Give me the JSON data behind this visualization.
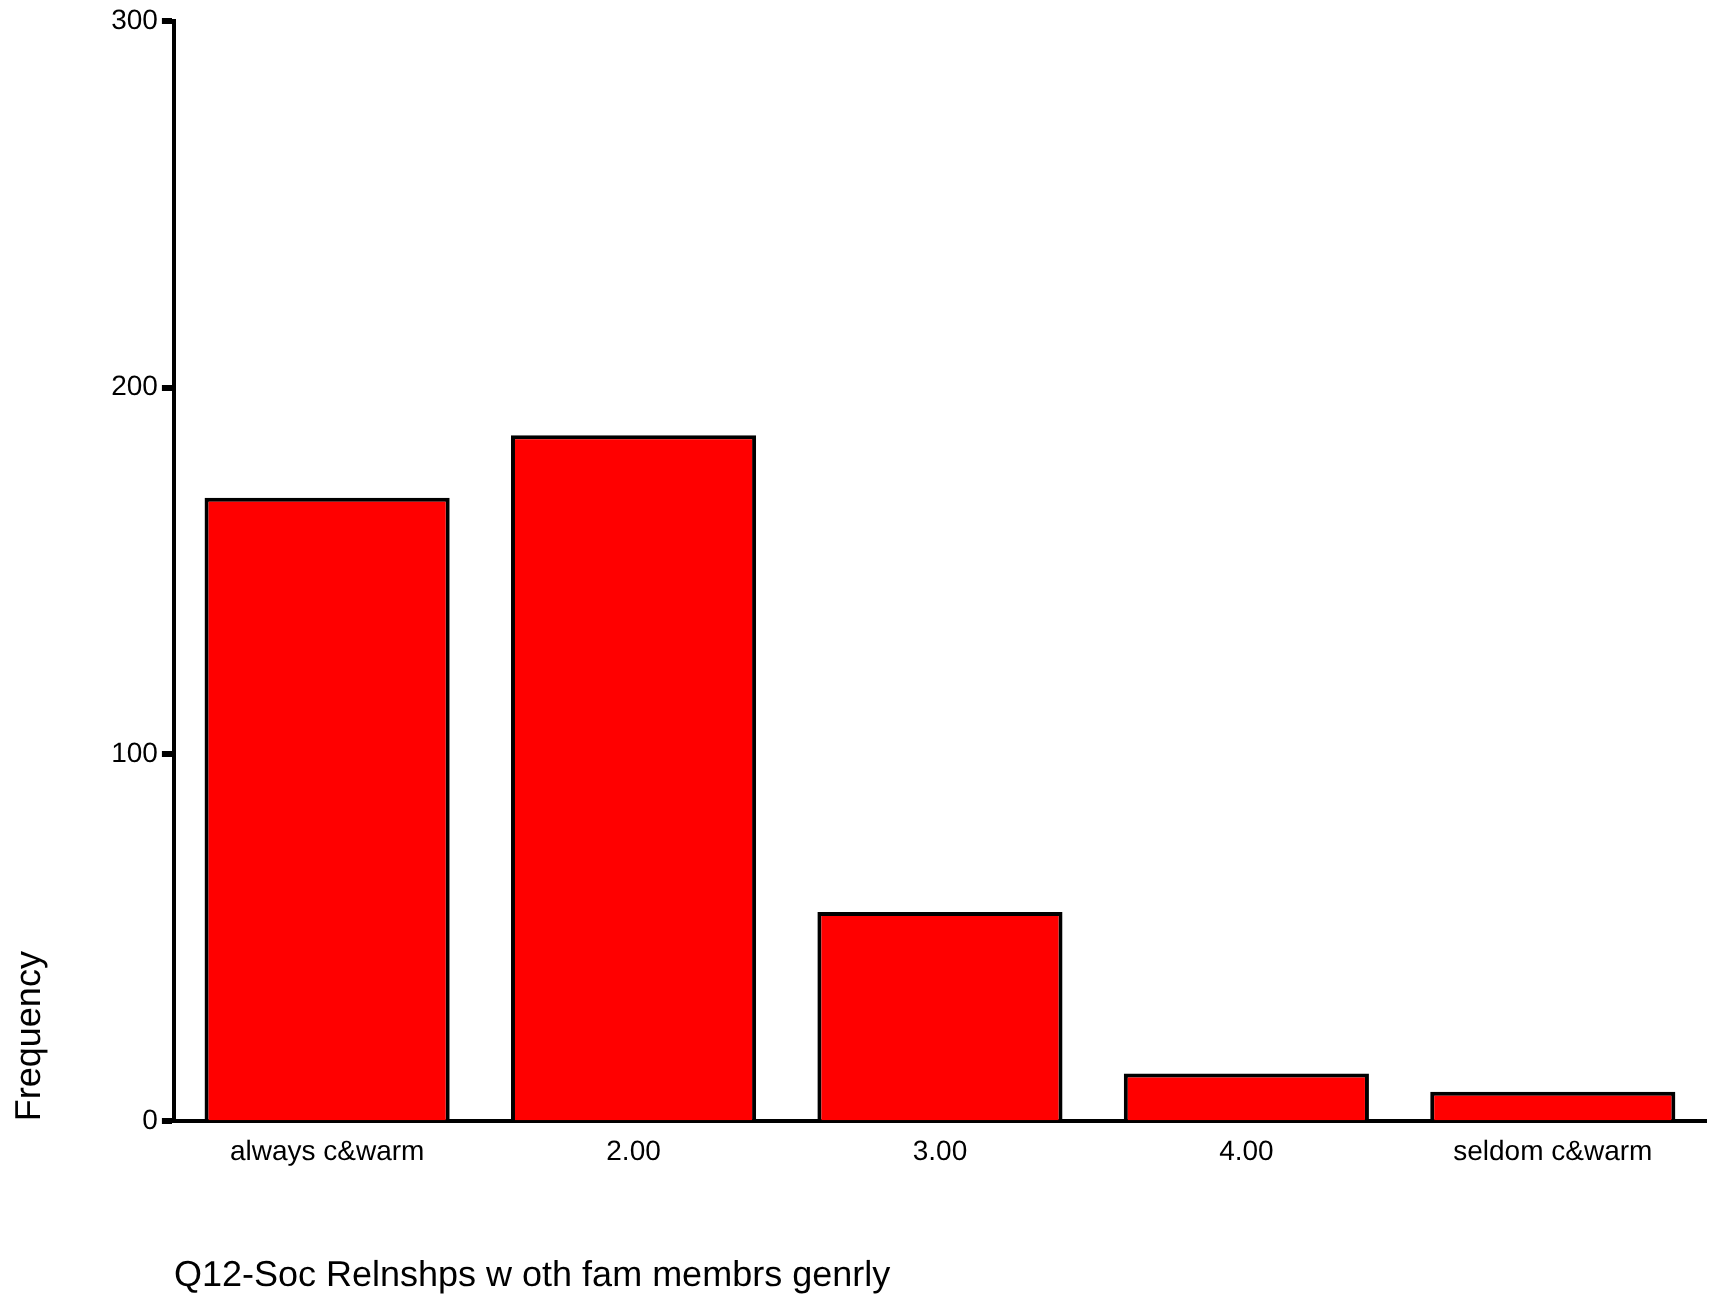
{
  "chart_data": {
    "type": "bar",
    "xlabel": "Q12-Soc Relnshps w oth fam membrs genrly",
    "ylabel": "Frequency",
    "categories": [
      "always c&warm",
      "2.00",
      "3.00",
      "4.00",
      "seldom c&warm"
    ],
    "values": [
      170,
      187,
      57,
      13,
      8
    ],
    "color": "#ff0000",
    "ylim": [
      0,
      300
    ],
    "yticks": [
      0,
      100,
      200,
      300
    ],
    "grid": false,
    "legend": false
  }
}
